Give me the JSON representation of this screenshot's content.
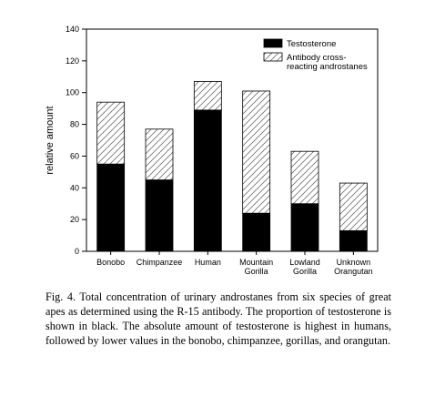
{
  "chart_data": {
    "type": "bar",
    "stacked": true,
    "categories": [
      [
        "Bonobo"
      ],
      [
        "Chimpanzee"
      ],
      [
        "Human"
      ],
      [
        "Mountain",
        "Gorilla"
      ],
      [
        "Lowland",
        "Gorilla"
      ],
      [
        "Unknown",
        "Orangutan"
      ]
    ],
    "series": [
      {
        "name": "Testosterone",
        "fill": "solid-black",
        "values": [
          55,
          45,
          89,
          24,
          30,
          13
        ]
      },
      {
        "name": [
          "Antibody cross-",
          "reacting androstanes"
        ],
        "fill": "diagonal-hatch",
        "values": [
          39,
          32,
          18,
          77,
          33,
          30
        ]
      }
    ],
    "totals": [
      94,
      77,
      107,
      101,
      63,
      43
    ],
    "ylabel": "relative amount",
    "xlabel": "",
    "ylim": [
      0,
      140
    ],
    "yticks": [
      0,
      20,
      40,
      60,
      80,
      100,
      120,
      140
    ],
    "grid": false,
    "legend_position": "top-right",
    "colors": {
      "testosterone": "#000000",
      "hatch": "#555555",
      "axis": "#000000"
    }
  },
  "caption": "Fig. 4. Total concentration of urinary androstanes from six species of great apes as determined using the R-15 antibody. The proportion of testosterone is shown in black. The absolute amount of testosterone is highest in humans, followed by lower values in the bonobo, chimpanzee, gorillas, and orangutan."
}
